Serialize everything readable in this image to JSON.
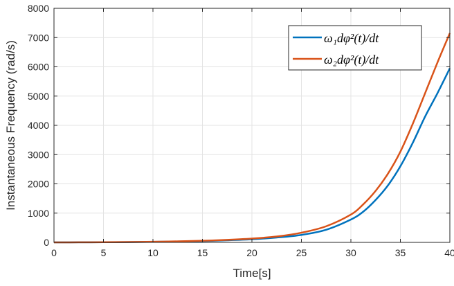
{
  "chart_data": {
    "type": "line",
    "title": "",
    "xlabel": "Time[s]",
    "ylabel": "Instantaneous Frequency (rad/s)",
    "xlim": [
      0,
      40
    ],
    "ylim": [
      0,
      8000
    ],
    "xticks": [
      0,
      5,
      10,
      15,
      20,
      25,
      30,
      35,
      40
    ],
    "yticks": [
      0,
      1000,
      2000,
      3000,
      4000,
      5000,
      6000,
      7000,
      8000
    ],
    "grid": true,
    "legend_position": "top-right",
    "series": [
      {
        "name": "ω₁dφ²(t)/dt",
        "color": "#0072BD",
        "x": [
          0,
          2.5,
          5,
          7.5,
          10,
          12.5,
          15,
          17.5,
          20,
          22.5,
          25,
          27.5,
          30,
          31.25,
          32.5,
          33.75,
          35,
          36.25,
          37.5,
          38.75,
          40
        ],
        "y": [
          0,
          2,
          5,
          10,
          18,
          30,
          45,
          70,
          105,
          165,
          255,
          430,
          780,
          1050,
          1450,
          1950,
          2600,
          3400,
          4300,
          5100,
          5950
        ]
      },
      {
        "name": "ω₂dφ²(t)/dt",
        "color": "#D95319",
        "x": [
          0,
          2.5,
          5,
          7.5,
          10,
          12.5,
          15,
          17.5,
          20,
          22.5,
          25,
          27.5,
          30,
          31.25,
          32.5,
          33.75,
          35,
          36.25,
          37.5,
          38.75,
          40
        ],
        "y": [
          0,
          2,
          6,
          12,
          21,
          35,
          55,
          85,
          130,
          200,
          330,
          550,
          950,
          1300,
          1760,
          2350,
          3100,
          4050,
          5100,
          6150,
          7150
        ]
      }
    ]
  }
}
